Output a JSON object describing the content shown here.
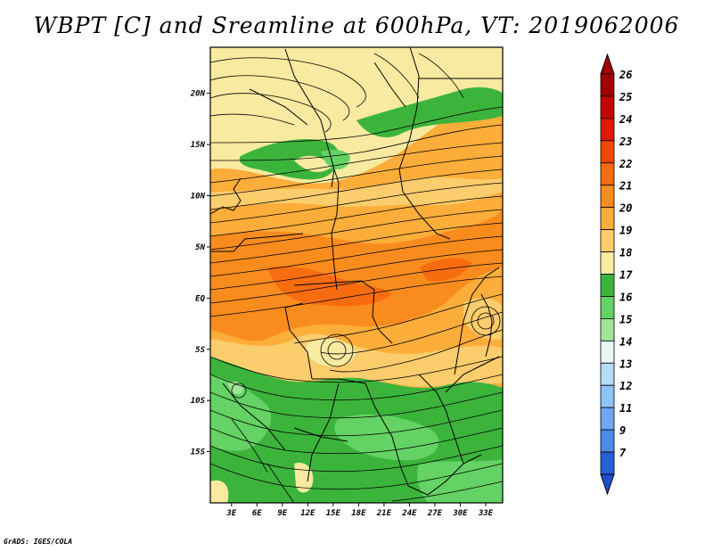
{
  "title": "WBPT [C] and Sreamline at 600hPa, VT: 2019062006",
  "credit": "GrADS: IGES/COLA",
  "map": {
    "lat_labels": [
      "20N",
      "15N",
      "10N",
      "5N",
      "EQ",
      "5S",
      "10S",
      "15S"
    ],
    "lat_values": [
      20,
      15,
      10,
      5,
      0,
      -5,
      -10,
      -15
    ],
    "lon_labels": [
      "3E",
      "6E",
      "9E",
      "12E",
      "15E",
      "18E",
      "21E",
      "24E",
      "27E",
      "30E",
      "33E"
    ],
    "lon_values": [
      3,
      6,
      9,
      12,
      15,
      18,
      21,
      24,
      27,
      30,
      33
    ],
    "lat_range": [
      -20,
      24.5
    ],
    "lon_range": [
      0.5,
      35
    ]
  },
  "colorbar": {
    "labels": [
      "26",
      "25",
      "24",
      "23",
      "22",
      "21",
      "20",
      "19",
      "18",
      "17",
      "16",
      "15",
      "14",
      "13",
      "12",
      "11",
      "9",
      "7"
    ],
    "colors": [
      "#a00000",
      "#c40000",
      "#e01800",
      "#f04800",
      "#f86c10",
      "#fa8c1e",
      "#fcad3a",
      "#fccd6c",
      "#f8eaa0",
      "#3cb43c",
      "#64d264",
      "#a0e696",
      "#e8faf0",
      "#b4dcfc",
      "#8cc4fa",
      "#6ea8f0",
      "#4a8ce6",
      "#2860d8"
    ]
  }
}
